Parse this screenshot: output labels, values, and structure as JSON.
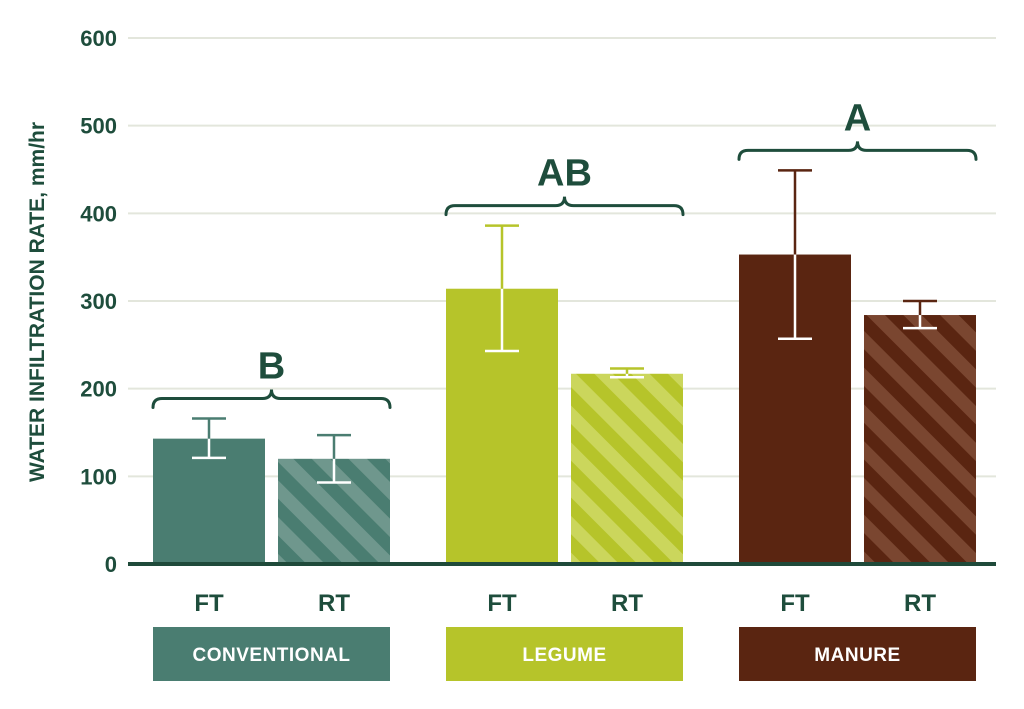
{
  "chart_data": {
    "type": "bar",
    "ylabel": "WATER INFILTRATION RATE, mm/hr",
    "ylim": [
      0,
      600
    ],
    "yticks": [
      0,
      100,
      200,
      300,
      400,
      500,
      600
    ],
    "grid": true,
    "groups": [
      {
        "name": "CONVENTIONAL",
        "significance": "B",
        "color": "#4a7d71",
        "hatch_color": "#6f978d",
        "bars": [
          {
            "label": "FT",
            "value": 143,
            "err_low": 121,
            "err_high": 166,
            "hatched": false
          },
          {
            "label": "RT",
            "value": 120,
            "err_low": 93,
            "err_high": 147,
            "hatched": true
          }
        ]
      },
      {
        "name": "LEGUME",
        "significance": "AB",
        "color": "#b6c42a",
        "hatch_color": "#cbd65c",
        "bars": [
          {
            "label": "FT",
            "value": 314,
            "err_low": 243,
            "err_high": 386,
            "hatched": false
          },
          {
            "label": "RT",
            "value": 217,
            "err_low": 213,
            "err_high": 223,
            "hatched": true
          }
        ]
      },
      {
        "name": "MANURE",
        "significance": "A",
        "color": "#5a2511",
        "hatch_color": "#7a4630",
        "bars": [
          {
            "label": "FT",
            "value": 353,
            "err_low": 257,
            "err_high": 449,
            "hatched": false
          },
          {
            "label": "RT",
            "value": 284,
            "err_low": 269,
            "err_high": 300,
            "hatched": true
          }
        ]
      }
    ]
  },
  "colors": {
    "text": "#1e4d3c",
    "grid": "#e3e6dc",
    "baseline": "#1f4a3a"
  }
}
